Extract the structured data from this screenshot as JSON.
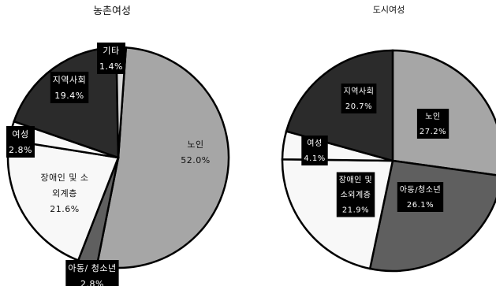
{
  "chart_data": [
    {
      "type": "pie",
      "title": "농촌여성",
      "categories": [
        "노인",
        "아동/ 청소년",
        "장애인 및 소외계층",
        "여성",
        "지역사회",
        "기타"
      ],
      "values": [
        52.0,
        2.8,
        21.6,
        2.8,
        19.4,
        1.4
      ],
      "value_labels": [
        "52.0%",
        "2.8%",
        "21.6%",
        "2.8%",
        "19.4%",
        "1.4%"
      ],
      "label_lines": [
        [
          "노인"
        ],
        [
          "아동/ 청소년"
        ],
        [
          "장애인 및 소",
          "외계층"
        ],
        [
          "여성"
        ],
        [
          "지역사회"
        ],
        [
          "기타"
        ]
      ],
      "colors": [
        "#a6a6a6",
        "#5f5f5f",
        "#f8f8f8",
        "#f8f8f8",
        "#2b2b2b",
        "#d9d9d9"
      ],
      "label_style": [
        "plain",
        "boxed",
        "plain",
        "boxed",
        "boxed",
        "boxed"
      ],
      "legend": "none"
    },
    {
      "type": "pie",
      "title": "도시여성",
      "categories": [
        "노인",
        "아동/청소년",
        "장애인 및 소외계층",
        "여성",
        "지역사회"
      ],
      "values": [
        27.2,
        26.1,
        21.9,
        4.1,
        20.7
      ],
      "value_labels": [
        "27.2%",
        "26.1%",
        "21.9%",
        "4.1%",
        "20.7%"
      ],
      "label_lines": [
        [
          "노인"
        ],
        [
          "아동/청소년"
        ],
        [
          "장애인 및",
          "소외계층"
        ],
        [
          "여성"
        ],
        [
          "지역사회"
        ]
      ],
      "colors": [
        "#a6a6a6",
        "#5f5f5f",
        "#f8f8f8",
        "#f8f8f8",
        "#2b2b2b"
      ],
      "label_style": [
        "boxed",
        "boxed",
        "boxed",
        "boxed",
        "boxed"
      ],
      "legend": "none"
    }
  ]
}
